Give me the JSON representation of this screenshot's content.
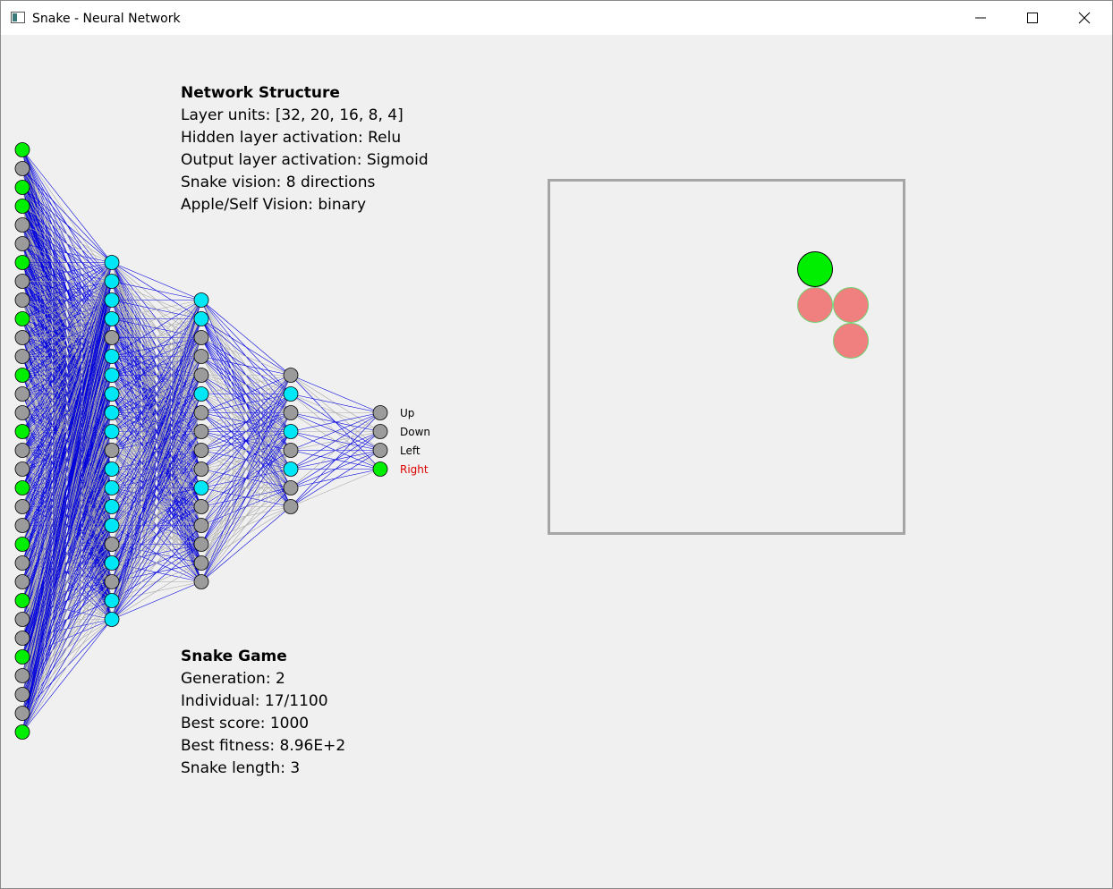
{
  "window": {
    "title": "Snake - Neural Network",
    "controls": [
      "minimize",
      "maximize",
      "close"
    ]
  },
  "network_info": {
    "heading": "Network Structure",
    "lines": [
      "Layer units: [32, 20, 16, 8, 4]",
      "Hidden layer activation: Relu",
      "Output layer activation: Sigmoid",
      "Snake vision: 8 directions",
      "Apple/Self Vision: binary"
    ]
  },
  "game_info": {
    "heading": "Snake Game",
    "lines": [
      "Generation: 2",
      "Individual: 17/1100",
      "Best score: 1000",
      "Best fitness: 8.96E+2",
      "Snake length: 3"
    ]
  },
  "network": {
    "layer_units": [
      32,
      20,
      16,
      8,
      4
    ],
    "active_nodes": [
      [
        0,
        2,
        3,
        6,
        9,
        12,
        15,
        18,
        21,
        24,
        27,
        31
      ],
      [
        0,
        1,
        2,
        3,
        5,
        6,
        7,
        8,
        9,
        11,
        12,
        13,
        14,
        16,
        18,
        19
      ],
      [
        0,
        1,
        5,
        10
      ],
      [
        1,
        3,
        5
      ],
      [
        3
      ]
    ],
    "output_labels": [
      "Up",
      "Down",
      "Left",
      "Right"
    ],
    "selected_output": "Right",
    "colors": {
      "input_active": "#00ee00",
      "hidden_active": "#00e8f8",
      "inactive": "#9b9b9b",
      "output_selected": "#00ee00",
      "connection_positive": "#0000dd",
      "connection_negative": "#a8a8a8",
      "selected_label": "#dd0000"
    }
  },
  "game": {
    "colors": {
      "head": "#00ee00",
      "body": "#f08080",
      "body_outline": "#6fd06f",
      "border": "#a5a5a5"
    }
  }
}
